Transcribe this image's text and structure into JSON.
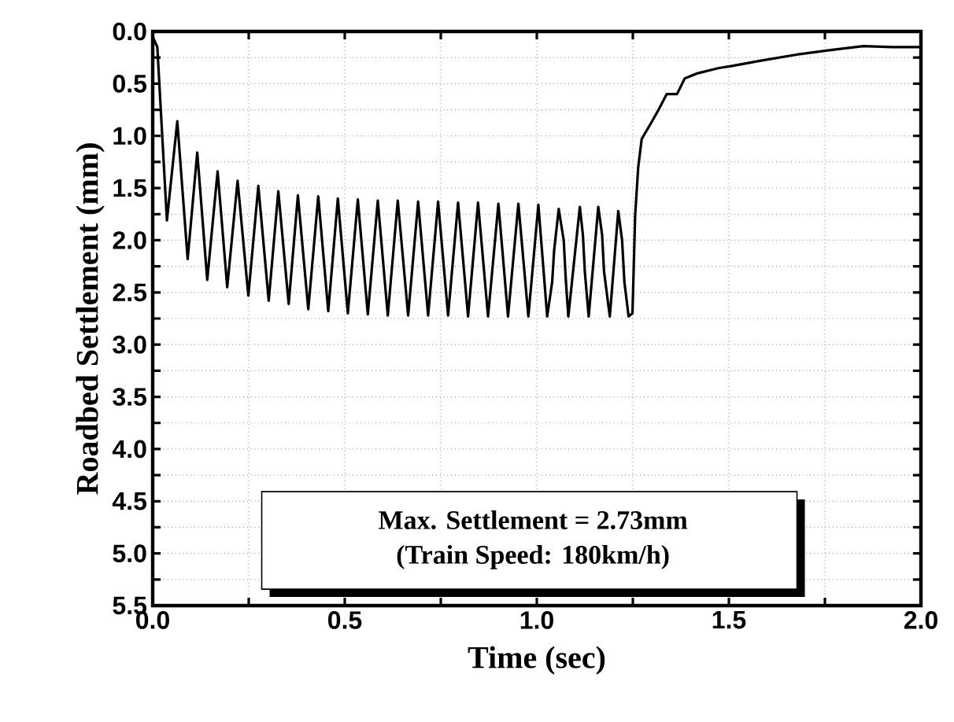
{
  "chart_data": {
    "type": "line",
    "xlabel": "Time (sec)",
    "ylabel": "Roadbed Settlement (mm)",
    "xlim": [
      0,
      2.0
    ],
    "ylim": [
      5.5,
      0
    ],
    "xticks": [
      {
        "value": 0,
        "label": "0.0"
      },
      {
        "value": 0.25,
        "label": null
      },
      {
        "value": 0.5,
        "label": "0.5"
      },
      {
        "value": 0.75,
        "label": null
      },
      {
        "value": 1.0,
        "label": "1.0"
      },
      {
        "value": 1.25,
        "label": null
      },
      {
        "value": 1.5,
        "label": "1.5"
      },
      {
        "value": 1.75,
        "label": null
      },
      {
        "value": 2.0,
        "label": "2.0"
      }
    ],
    "yticks": [
      {
        "value": 0,
        "label": "0.0"
      },
      {
        "value": 0.25,
        "label": null
      },
      {
        "value": 0.5,
        "label": "0.5"
      },
      {
        "value": 0.75,
        "label": null
      },
      {
        "value": 1.0,
        "label": "1.0"
      },
      {
        "value": 1.25,
        "label": null
      },
      {
        "value": 1.5,
        "label": "1.5"
      },
      {
        "value": 1.75,
        "label": null
      },
      {
        "value": 2.0,
        "label": "2.0"
      },
      {
        "value": 2.25,
        "label": null
      },
      {
        "value": 2.5,
        "label": "2.5"
      },
      {
        "value": 2.75,
        "label": null
      },
      {
        "value": 3.0,
        "label": "3.0"
      },
      {
        "value": 3.25,
        "label": null
      },
      {
        "value": 3.5,
        "label": "3.5"
      },
      {
        "value": 3.75,
        "label": null
      },
      {
        "value": 4.0,
        "label": "4.0"
      },
      {
        "value": 4.25,
        "label": null
      },
      {
        "value": 4.5,
        "label": "4.5"
      },
      {
        "value": 4.75,
        "label": null
      },
      {
        "value": 5.0,
        "label": "5.0"
      },
      {
        "value": 5.25,
        "label": null
      },
      {
        "value": 5.5,
        "label": "5.5"
      }
    ],
    "grid": true,
    "marker": "none",
    "line_style": "solid",
    "series": [
      {
        "color": "#000000",
        "x": [
          0,
          0.012,
          0.037,
          0.064,
          0.091,
          0.116,
          0.142,
          0.169,
          0.194,
          0.221,
          0.249,
          0.275,
          0.302,
          0.327,
          0.354,
          0.378,
          0.405,
          0.431,
          0.457,
          0.482,
          0.508,
          0.534,
          0.56,
          0.586,
          0.612,
          0.638,
          0.665,
          0.691,
          0.717,
          0.743,
          0.769,
          0.795,
          0.821,
          0.847,
          0.873,
          0.9,
          0.925,
          0.952,
          0.978,
          1.004,
          1.027,
          1.04,
          1.045,
          1.057,
          1.07,
          1.075,
          1.082,
          1.112,
          1.12,
          1.125,
          1.135,
          1.16,
          1.17,
          1.175,
          1.19,
          1.212,
          1.222,
          1.228,
          1.239,
          1.249,
          1.256,
          1.264,
          1.273,
          1.297,
          1.317,
          1.338,
          1.365,
          1.385,
          1.419,
          1.474,
          1.508,
          1.583,
          1.679,
          1.761,
          1.85,
          1.925,
          2.0
        ],
        "values": [
          0.05,
          0.15,
          1.81,
          0.86,
          2.18,
          1.16,
          2.38,
          1.34,
          2.45,
          1.43,
          2.53,
          1.48,
          2.58,
          1.53,
          2.61,
          1.57,
          2.66,
          1.58,
          2.68,
          1.6,
          2.7,
          1.61,
          2.71,
          1.62,
          2.72,
          1.62,
          2.72,
          1.63,
          2.72,
          1.63,
          2.72,
          1.64,
          2.73,
          1.64,
          2.73,
          1.65,
          2.73,
          1.65,
          2.73,
          1.66,
          2.73,
          2.4,
          2.1,
          1.7,
          2.0,
          2.35,
          2.73,
          1.68,
          1.95,
          2.3,
          2.73,
          1.68,
          1.95,
          2.3,
          2.73,
          1.72,
          2.0,
          2.4,
          2.73,
          2.7,
          1.76,
          1.3,
          1.03,
          0.88,
          0.75,
          0.6,
          0.6,
          0.45,
          0.4,
          0.35,
          0.33,
          0.28,
          0.22,
          0.18,
          0.14,
          0.15,
          0.15
        ]
      }
    ],
    "annotations": [
      "Max. Settlement = 2.73mm",
      "(Train Speed: 180km/h)"
    ]
  }
}
